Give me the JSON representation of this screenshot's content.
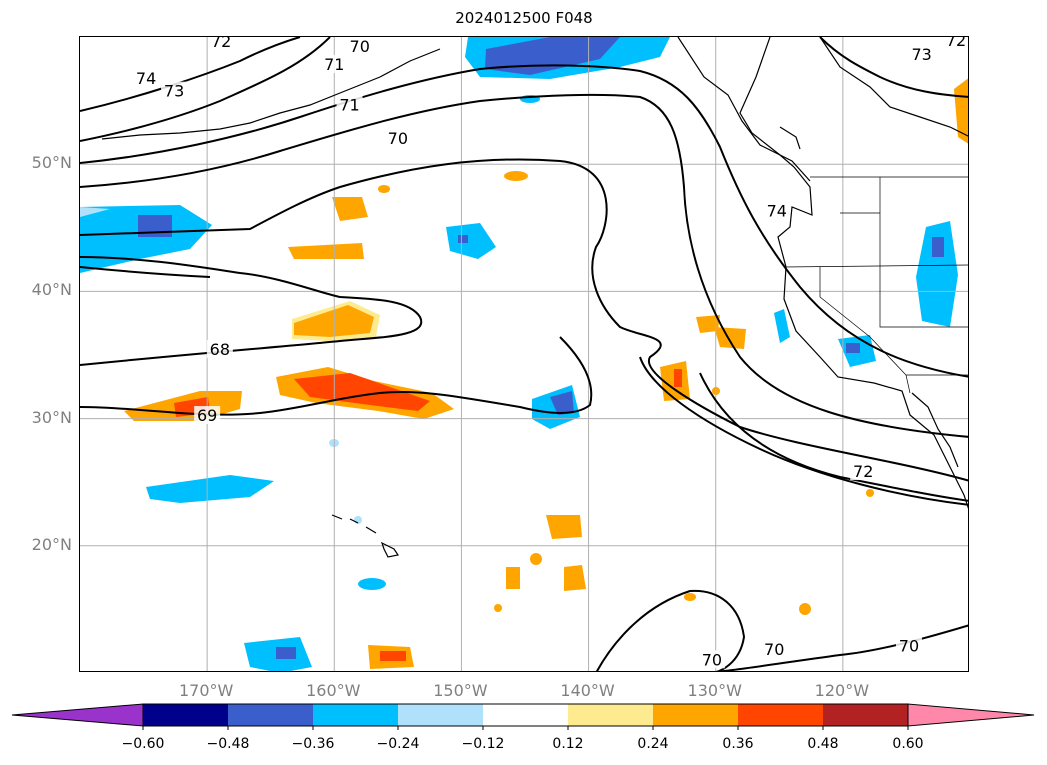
{
  "title": "2024012500 F048",
  "map": {
    "lon_range": [
      -180,
      -110
    ],
    "lat_range": [
      10,
      60
    ],
    "lat_labels": [
      {
        "lat": 50,
        "text": "50°N"
      },
      {
        "lat": 40,
        "text": "40°N"
      },
      {
        "lat": 30,
        "text": "30°N"
      },
      {
        "lat": 20,
        "text": "20°N"
      }
    ],
    "lon_labels": [
      {
        "lon": -170,
        "text": "170°W"
      },
      {
        "lon": -160,
        "text": "160°W"
      },
      {
        "lon": -150,
        "text": "150°W"
      },
      {
        "lon": -140,
        "text": "140°W"
      },
      {
        "lon": -130,
        "text": "130°W"
      },
      {
        "lon": -120,
        "text": "120°W"
      }
    ],
    "grid": true,
    "contour_labels": [
      {
        "text": "72",
        "lon": -168.9,
        "lat": 59.6
      },
      {
        "text": "70",
        "lon": -158.0,
        "lat": 59.2
      },
      {
        "text": "71",
        "lon": -160.0,
        "lat": 57.8
      },
      {
        "text": "74",
        "lon": -174.8,
        "lat": 56.7
      },
      {
        "text": "73",
        "lon": -172.6,
        "lat": 55.7
      },
      {
        "text": "71",
        "lon": -158.8,
        "lat": 54.6
      },
      {
        "text": "70",
        "lon": -155.0,
        "lat": 52.0
      },
      {
        "text": "68",
        "lon": -169.0,
        "lat": 35.4
      },
      {
        "text": "69",
        "lon": -170.0,
        "lat": 30.2
      },
      {
        "text": "73",
        "lon": -113.8,
        "lat": 58.6
      },
      {
        "text": "72",
        "lon": -111.1,
        "lat": 59.7
      },
      {
        "text": "74",
        "lon": -125.2,
        "lat": 46.3
      },
      {
        "text": "72",
        "lon": -118.4,
        "lat": 25.8
      },
      {
        "text": "70",
        "lon": -130.3,
        "lat": 11.0
      },
      {
        "text": "70",
        "lon": -125.4,
        "lat": 11.8
      },
      {
        "text": "70",
        "lon": -114.8,
        "lat": 12.1
      }
    ]
  },
  "colorbar": {
    "levels": [
      -0.6,
      -0.48,
      -0.36,
      -0.24,
      -0.12,
      0.12,
      0.24,
      0.36,
      0.48,
      0.6
    ],
    "tick_labels": [
      "−0.60",
      "−0.48",
      "−0.36",
      "−0.24",
      "−0.12",
      "0.12",
      "0.24",
      "0.36",
      "0.48",
      "0.60"
    ],
    "colors": [
      "#9933cc",
      "#00008b",
      "#3a5fcd",
      "#00bfff",
      "#afe1fa",
      "#ffffff",
      "#ffeb8f",
      "#ffa500",
      "#ff4500",
      "#b22222",
      "#ff88aa"
    ]
  },
  "fill_colors": {
    "neg_strong": "#3a5fcd",
    "neg_mid": "#00bfff",
    "neg_weak": "#afe1fa",
    "pos_weak": "#ffeb8f",
    "pos_mid": "#ffa500",
    "pos_strong": "#ff4500"
  }
}
